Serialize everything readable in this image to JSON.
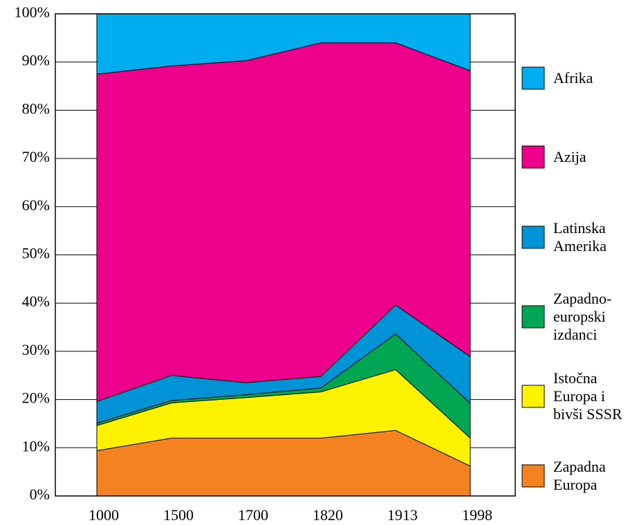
{
  "chart_data": {
    "type": "stacked_area",
    "categories": [
      "1000",
      "1500",
      "1700",
      "1820",
      "1913",
      "1998"
    ],
    "series": [
      {
        "name": "Zapadna Europa",
        "color": "#f58220",
        "values": [
          9.4,
          12,
          12,
          12,
          13.6,
          6.2
        ]
      },
      {
        "name": "Istočna Europa i bivši SSSR",
        "color": "#fff200",
        "values": [
          5.2,
          7.3,
          8.4,
          9.6,
          12.6,
          5.8
        ]
      },
      {
        "name": "Zapadno-europski izdanci",
        "color": "#00a651",
        "values": [
          0.5,
          0.5,
          0.6,
          0.8,
          7.4,
          7.2
        ]
      },
      {
        "name": "Latinska Amerika",
        "color": "#0093d6",
        "values": [
          4.5,
          5.2,
          2.5,
          2.4,
          6,
          9.7
        ]
      },
      {
        "name": "Azija",
        "color": "#ec008c",
        "values": [
          67.9,
          64.2,
          66.8,
          69.2,
          54.4,
          59.3
        ]
      },
      {
        "name": "Afrika",
        "color": "#00aeef",
        "values": [
          12.5,
          10.8,
          9.7,
          6,
          6,
          11.8
        ]
      }
    ],
    "ylim": [
      0,
      100
    ],
    "yticks": [
      {
        "value": 0,
        "label": "0%"
      },
      {
        "value": 10,
        "label": "10%"
      },
      {
        "value": 20,
        "label": "20%"
      },
      {
        "value": 30,
        "label": "30%"
      },
      {
        "value": 40,
        "label": "40%"
      },
      {
        "value": 50,
        "label": "50%"
      },
      {
        "value": 60,
        "label": "60%"
      },
      {
        "value": 70,
        "label": "70%"
      },
      {
        "value": 80,
        "label": "80%"
      },
      {
        "value": 90,
        "label": "90%"
      },
      {
        "value": 100,
        "label": "100%"
      }
    ],
    "grid": true,
    "legend": "right"
  }
}
